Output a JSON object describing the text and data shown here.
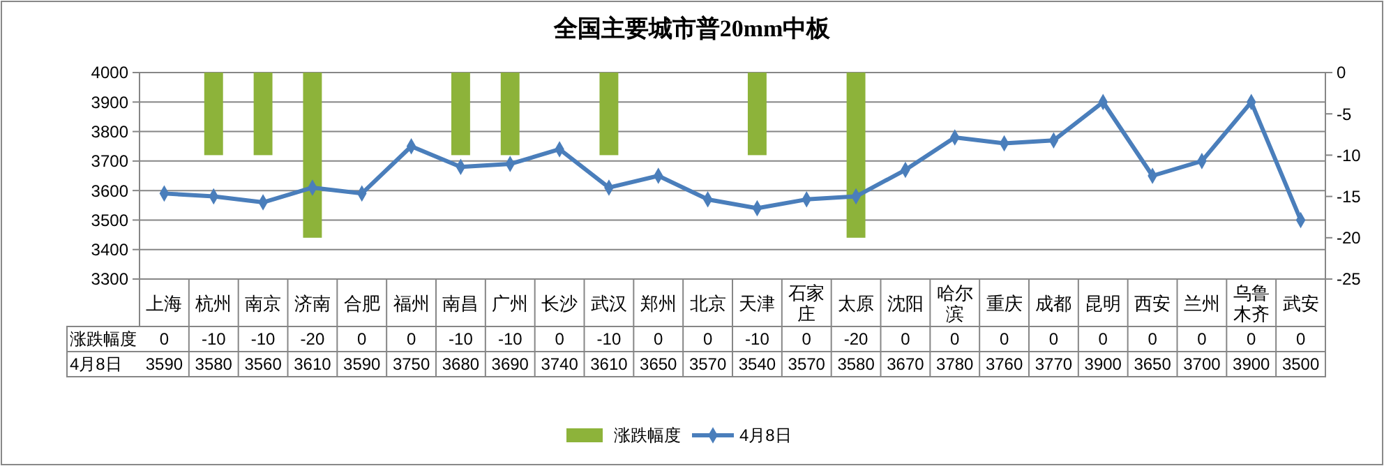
{
  "chart_data": {
    "type": "line",
    "title": "全国主要城市普20mm中板",
    "categories": [
      "上海",
      "杭州",
      "南京",
      "济南",
      "合肥",
      "福州",
      "南昌",
      "广州",
      "长沙",
      "武汉",
      "郑州",
      "北京",
      "天津",
      "石家庄",
      "太原",
      "沈阳",
      "哈尔滨",
      "重庆",
      "成都",
      "昆明",
      "西安",
      "兰州",
      "乌鲁木齐",
      "武安"
    ],
    "series": [
      {
        "name": "涨跌幅度",
        "type": "bar",
        "axis": "y2",
        "color": "#8db33a",
        "values": [
          0,
          -10,
          -10,
          -20,
          0,
          0,
          -10,
          -10,
          0,
          -10,
          0,
          0,
          -10,
          0,
          -20,
          0,
          0,
          0,
          0,
          0,
          0,
          0,
          0,
          0
        ]
      },
      {
        "name": "4月8日",
        "color": "#4a7ebb",
        "values": [
          3590,
          3580,
          3560,
          3610,
          3590,
          3750,
          3680,
          3690,
          3740,
          3610,
          3650,
          3570,
          3540,
          3570,
          3580,
          3670,
          3780,
          3760,
          3770,
          3900,
          3650,
          3700,
          3900,
          3500
        ]
      }
    ],
    "ylim": [
      3300,
      4000
    ],
    "yticks": [
      3300,
      3400,
      3500,
      3600,
      3700,
      3800,
      3900,
      4000
    ],
    "y2lim": [
      -25,
      0
    ],
    "y2ticks": [
      -25,
      -20,
      -15,
      -10,
      -5,
      0
    ],
    "grid": "y",
    "legend": "bottom",
    "marker": "diamond",
    "data_labels": true
  }
}
